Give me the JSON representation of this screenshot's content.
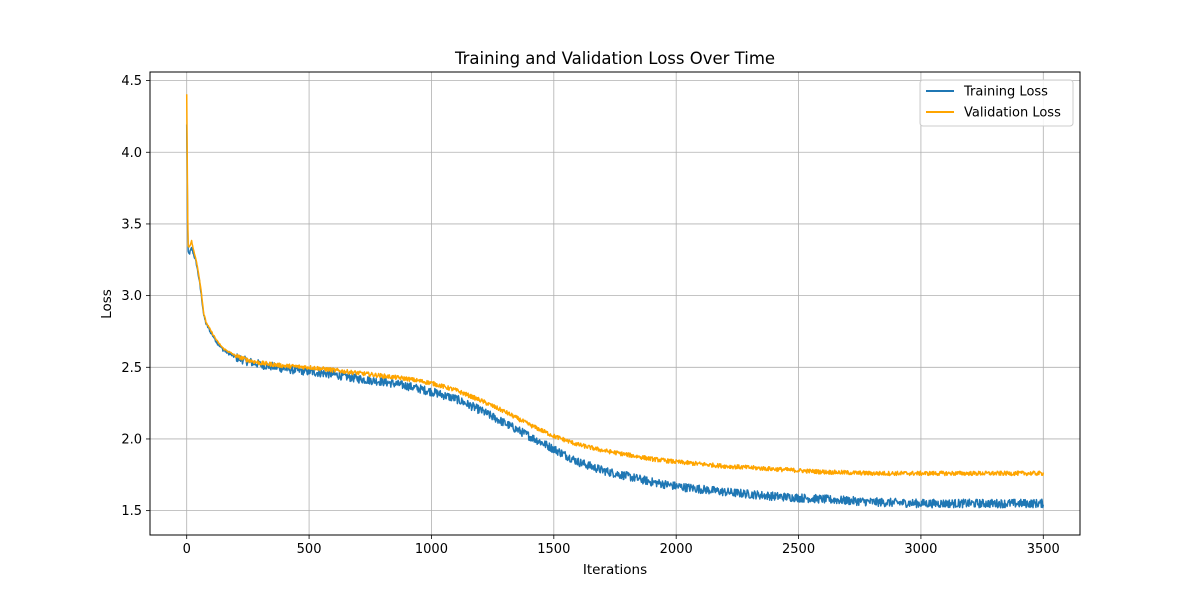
{
  "chart_data": {
    "type": "line",
    "title": "Training and Validation Loss Over Time",
    "xlabel": "Iterations",
    "ylabel": "Loss",
    "xlim": [
      -150,
      3650
    ],
    "ylim": [
      1.33,
      4.56
    ],
    "xticks": [
      0,
      500,
      1000,
      1500,
      2000,
      2500,
      3000,
      3500
    ],
    "yticks": [
      1.5,
      2.0,
      2.5,
      3.0,
      3.5,
      4.0,
      4.5
    ],
    "xtick_labels": [
      "0",
      "500",
      "1000",
      "1500",
      "2000",
      "2500",
      "3000",
      "3500"
    ],
    "ytick_labels": [
      "1.5",
      "2.0",
      "2.5",
      "3.0",
      "3.5",
      "4.0",
      "4.5"
    ],
    "grid": true,
    "legend_position": "top-right",
    "x_range": [
      0,
      3500
    ],
    "series": [
      {
        "name": "Training Loss",
        "color": "#1f77b4",
        "noise": 0.03,
        "x": [
          0,
          5,
          10,
          20,
          30,
          40,
          50,
          60,
          70,
          80,
          100,
          125,
          150,
          200,
          250,
          300,
          400,
          500,
          600,
          700,
          800,
          900,
          1000,
          1100,
          1200,
          1300,
          1400,
          1500,
          1600,
          1700,
          1800,
          1900,
          2000,
          2200,
          2400,
          2600,
          2800,
          3000,
          3200,
          3400,
          3500
        ],
        "values": [
          4.19,
          3.3,
          3.29,
          3.33,
          3.28,
          3.22,
          3.12,
          3.0,
          2.86,
          2.8,
          2.74,
          2.67,
          2.62,
          2.57,
          2.54,
          2.52,
          2.49,
          2.47,
          2.45,
          2.42,
          2.4,
          2.37,
          2.33,
          2.28,
          2.2,
          2.11,
          2.02,
          1.93,
          1.84,
          1.78,
          1.74,
          1.7,
          1.67,
          1.63,
          1.6,
          1.58,
          1.56,
          1.55,
          1.55,
          1.55,
          1.55
        ]
      },
      {
        "name": "Validation Loss",
        "color": "#ffa500",
        "noise": 0.015,
        "x": [
          0,
          5,
          10,
          20,
          30,
          40,
          50,
          60,
          70,
          80,
          100,
          125,
          150,
          200,
          250,
          300,
          400,
          500,
          600,
          700,
          800,
          900,
          1000,
          1100,
          1200,
          1300,
          1400,
          1500,
          1600,
          1700,
          1800,
          1900,
          2000,
          2200,
          2400,
          2600,
          2800,
          3000,
          3200,
          3400,
          3500
        ],
        "values": [
          4.41,
          3.35,
          3.34,
          3.38,
          3.3,
          3.24,
          3.14,
          3.02,
          2.87,
          2.81,
          2.75,
          2.68,
          2.63,
          2.58,
          2.55,
          2.53,
          2.51,
          2.5,
          2.48,
          2.46,
          2.44,
          2.42,
          2.39,
          2.34,
          2.27,
          2.19,
          2.1,
          2.02,
          1.96,
          1.92,
          1.89,
          1.86,
          1.84,
          1.81,
          1.79,
          1.77,
          1.76,
          1.76,
          1.76,
          1.76,
          1.76
        ]
      }
    ]
  }
}
